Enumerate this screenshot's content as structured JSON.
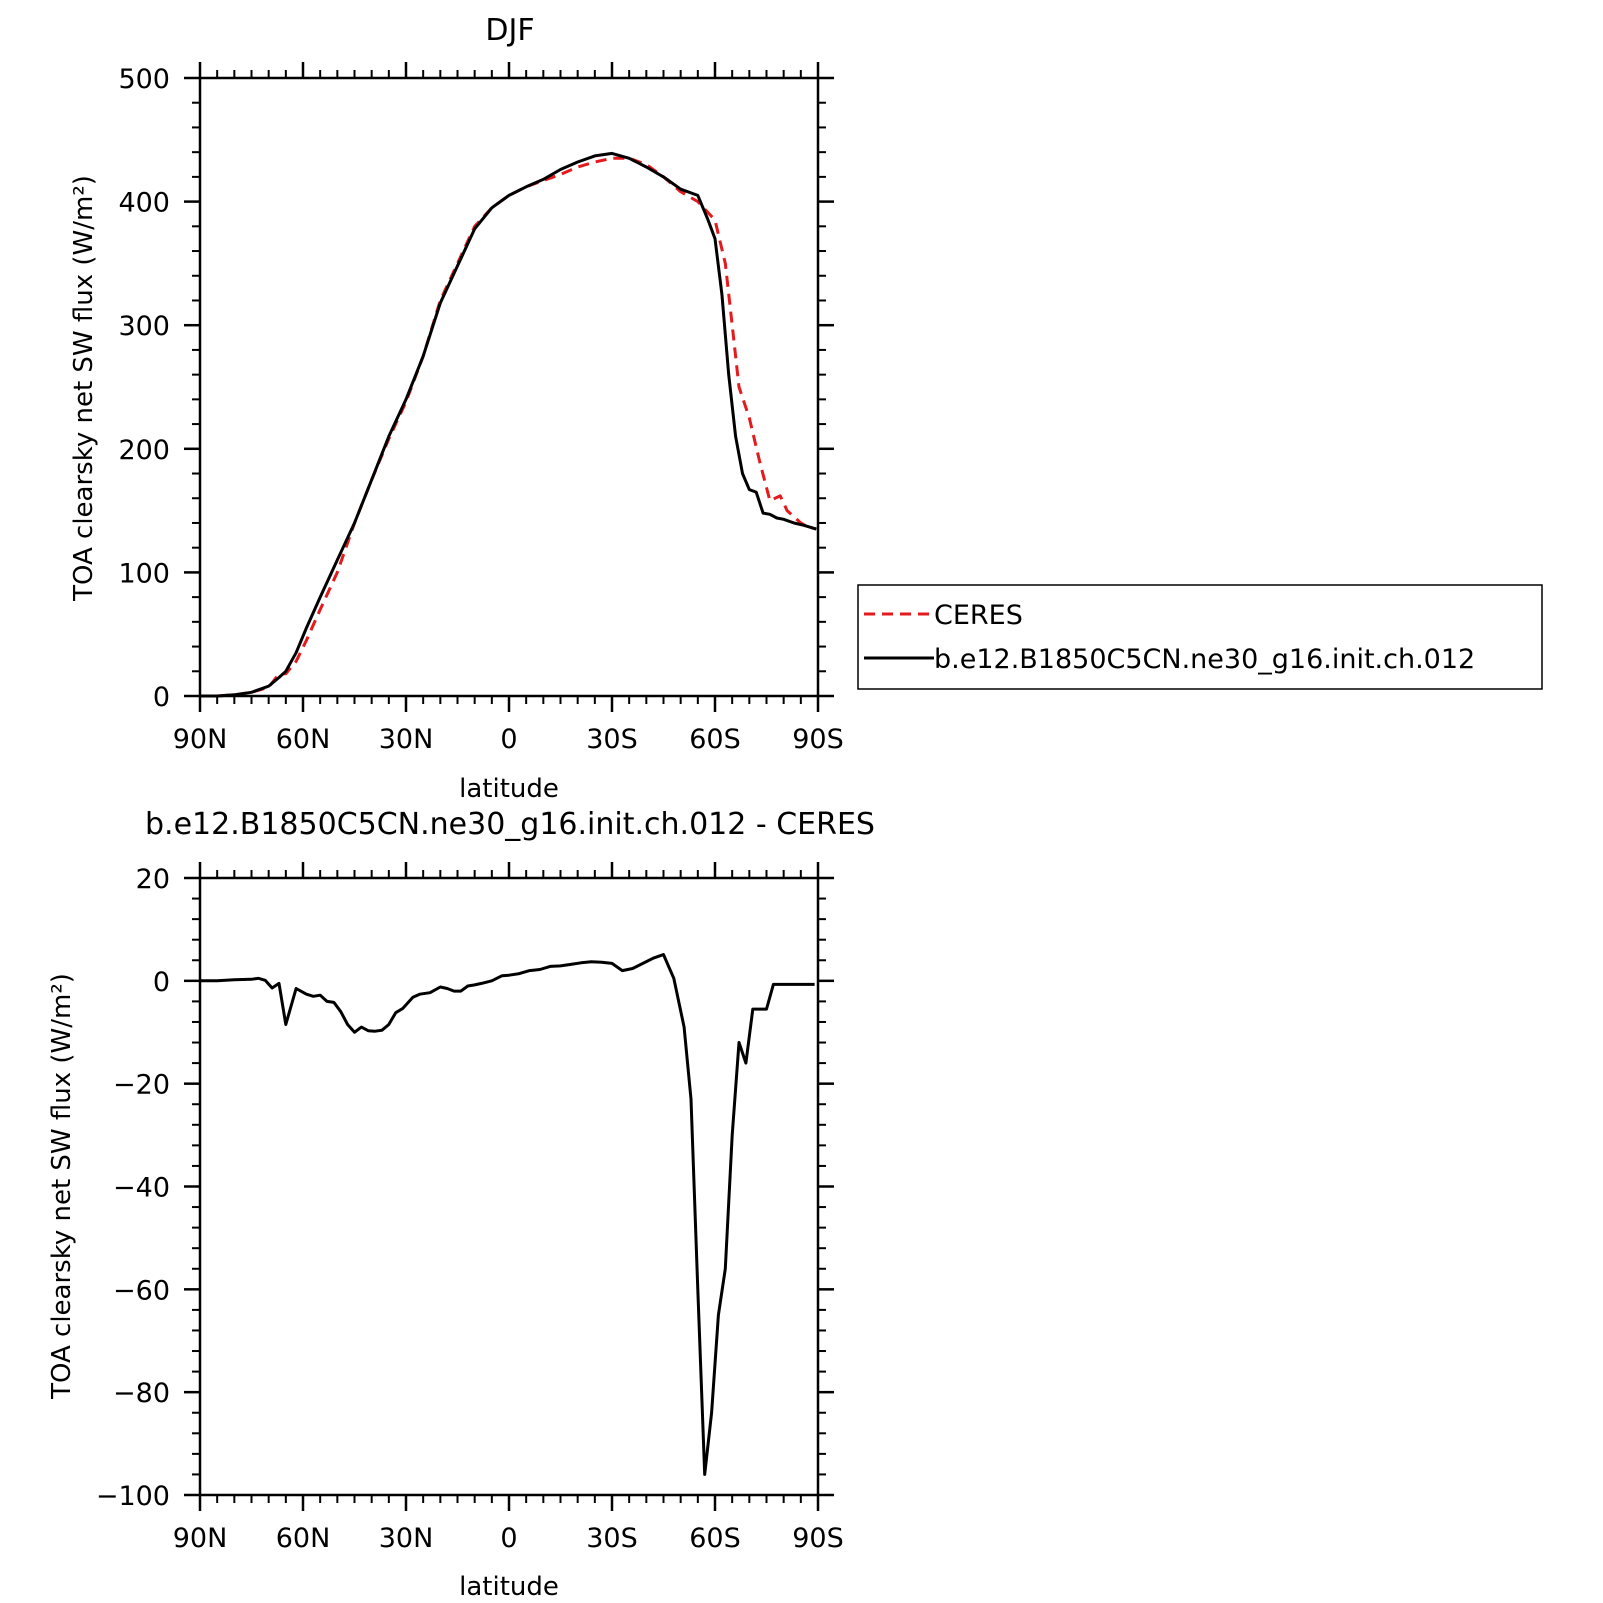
{
  "chart_data": [
    {
      "type": "line",
      "title": "DJF",
      "xlabel": "latitude",
      "ylabel": "TOA clearsky net SW flux (W/m²)",
      "xlim": [
        90,
        -90
      ],
      "ylim": [
        0,
        500
      ],
      "x_ticks": [
        {
          "value": 90,
          "label": "90N"
        },
        {
          "value": 60,
          "label": "60N"
        },
        {
          "value": 30,
          "label": "30N"
        },
        {
          "value": 0,
          "label": "0"
        },
        {
          "value": -30,
          "label": "30S"
        },
        {
          "value": -60,
          "label": "60S"
        },
        {
          "value": -90,
          "label": "90S"
        }
      ],
      "y_ticks": [
        0,
        100,
        200,
        300,
        400,
        500
      ],
      "legend_position": "right",
      "series": [
        {
          "name": "CERES",
          "color": "#e41a1c",
          "style": "dashed",
          "x": [
            90,
            85,
            80,
            75,
            70,
            67,
            65,
            62,
            59,
            55,
            50,
            45,
            40,
            35,
            30,
            25,
            20,
            15,
            10,
            5,
            0,
            -5,
            -10,
            -15,
            -20,
            -25,
            -30,
            -35,
            -40,
            -45,
            -50,
            -55,
            -60,
            -63,
            -65,
            -67,
            -70,
            -73,
            -76,
            -79,
            -81,
            -83,
            -85,
            -87,
            -89.5
          ],
          "values": [
            0,
            0,
            1,
            3,
            7,
            18,
            18,
            28,
            45,
            70,
            100,
            140,
            175,
            208,
            238,
            275,
            320,
            350,
            380,
            395,
            405,
            412,
            417,
            422,
            428,
            432,
            435,
            435,
            430,
            420,
            408,
            400,
            385,
            350,
            300,
            250,
            225,
            190,
            158,
            162,
            150,
            145,
            140,
            137,
            135
          ]
        },
        {
          "name": "b.e12.B1850C5CN.ne30_g16.init.ch.012",
          "color": "#000000",
          "style": "solid",
          "x": [
            90,
            85,
            80,
            75,
            70,
            67,
            65,
            62,
            59,
            55,
            50,
            45,
            40,
            35,
            30,
            25,
            20,
            15,
            10,
            5,
            0,
            -5,
            -10,
            -15,
            -20,
            -25,
            -30,
            -35,
            -40,
            -45,
            -50,
            -55,
            -58,
            -60,
            -62,
            -64,
            -66,
            -68,
            -70,
            -72,
            -74,
            -76,
            -78,
            -80,
            -83,
            -86,
            -89.5
          ],
          "values": [
            0,
            0,
            1,
            3,
            8,
            15,
            20,
            35,
            55,
            80,
            110,
            140,
            175,
            210,
            240,
            275,
            318,
            348,
            378,
            395,
            405,
            412,
            418,
            426,
            432,
            437,
            439,
            435,
            428,
            420,
            410,
            405,
            385,
            370,
            325,
            260,
            210,
            180,
            167,
            165,
            148,
            147,
            144,
            143,
            140,
            138,
            135
          ]
        }
      ]
    },
    {
      "type": "line",
      "title": "b.e12.B1850C5CN.ne30_g16.init.ch.012 - CERES",
      "xlabel": "latitude",
      "ylabel": "TOA clearsky net SW flux (W/m²)",
      "xlim": [
        90,
        -90
      ],
      "ylim": [
        -100,
        20
      ],
      "x_ticks": [
        {
          "value": 90,
          "label": "90N"
        },
        {
          "value": 60,
          "label": "60N"
        },
        {
          "value": 30,
          "label": "30N"
        },
        {
          "value": 0,
          "label": "0"
        },
        {
          "value": -30,
          "label": "30S"
        },
        {
          "value": -60,
          "label": "60S"
        },
        {
          "value": -90,
          "label": "90S"
        }
      ],
      "y_ticks": [
        20,
        0,
        -20,
        -40,
        -60,
        -80,
        -100
      ],
      "y_tick_labels": [
        "20",
        "0",
        "−20",
        "−40",
        "−60",
        "−80",
        "−100"
      ],
      "series": [
        {
          "color": "#000000",
          "style": "solid",
          "x": [
            90,
            85,
            80,
            75,
            73,
            71,
            69,
            67,
            65,
            62,
            59,
            57,
            55,
            53,
            51,
            49,
            47,
            45,
            43,
            41,
            39,
            37,
            35,
            33,
            31,
            28,
            26,
            23,
            20,
            18,
            16,
            14,
            12,
            10,
            8,
            5,
            2,
            0,
            -3,
            -6,
            -9,
            -12,
            -15,
            -18,
            -21,
            -24,
            -27,
            -30,
            -33,
            -36,
            -39,
            -42,
            -45,
            -48,
            -51,
            -53,
            -55,
            -57,
            -59,
            -61,
            -63,
            -65,
            -67,
            -69,
            -71,
            -73,
            -75,
            -77,
            -79,
            -81,
            -83,
            -85,
            -87,
            -89
          ],
          "values": [
            0,
            0,
            0.2,
            0.3,
            0.5,
            0.1,
            -1.4,
            -0.5,
            -8.5,
            -1.5,
            -2.6,
            -3,
            -2.8,
            -4,
            -4.2,
            -6,
            -8.5,
            -10,
            -9,
            -9.7,
            -9.8,
            -9.6,
            -8.5,
            -6.2,
            -5.4,
            -3.2,
            -2.6,
            -2.3,
            -1.2,
            -1.5,
            -2,
            -2,
            -1,
            -0.8,
            -0.5,
            0,
            1,
            1.1,
            1.4,
            2,
            2.2,
            2.8,
            2.9,
            3.2,
            3.5,
            3.7,
            3.6,
            3.4,
            2,
            2.4,
            3.4,
            4.4,
            5.1,
            0.5,
            -9,
            -23,
            -60,
            -96,
            -84,
            -65,
            -56,
            -30,
            -12,
            -16,
            -5.5,
            -5.5,
            -5.5,
            -0.7,
            -0.7,
            -0.7,
            -0.7,
            -0.7,
            -0.7,
            -0.7
          ]
        }
      ]
    }
  ]
}
